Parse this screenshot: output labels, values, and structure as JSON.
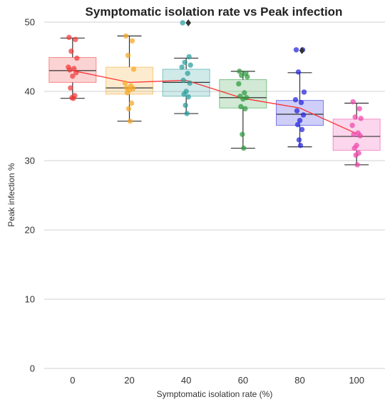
{
  "chart_data": {
    "type": "box",
    "title": "Symptomatic isolation rate vs Peak infection",
    "xlabel": "Symptomatic isolation rate (%)",
    "ylabel": "Peak infection %",
    "ylim": [
      0,
      50
    ],
    "yticks": [
      0,
      10,
      20,
      30,
      40,
      50
    ],
    "grid": true,
    "categories": [
      "0",
      "20",
      "40",
      "60",
      "80",
      "100"
    ],
    "colors": [
      "#f03838",
      "#f5a623",
      "#2a9d9d",
      "#2e9a3e",
      "#2222dd",
      "#ee44aa"
    ],
    "boxes": [
      {
        "category": "0",
        "min": 39.0,
        "q1": 41.3,
        "median": 43.0,
        "q3": 44.9,
        "max": 47.7
      },
      {
        "category": "20",
        "min": 35.7,
        "q1": 39.6,
        "median": 40.5,
        "q3": 43.5,
        "max": 48.0
      },
      {
        "category": "40",
        "min": 36.8,
        "q1": 39.3,
        "median": 41.3,
        "q3": 43.2,
        "max": 44.8
      },
      {
        "category": "60",
        "min": 31.8,
        "q1": 37.6,
        "median": 39.1,
        "q3": 41.7,
        "max": 42.9
      },
      {
        "category": "80",
        "min": 32.0,
        "q1": 35.1,
        "median": 36.7,
        "q3": 38.7,
        "max": 42.7
      },
      {
        "category": "100",
        "min": 29.4,
        "q1": 31.5,
        "median": 33.5,
        "q3": 36.0,
        "max": 38.3
      }
    ],
    "outliers": [
      {
        "category": "40",
        "value": 49.9
      },
      {
        "category": "80",
        "value": 45.9
      }
    ],
    "mean_line": [
      43.0,
      41.3,
      41.6,
      39.0,
      37.6,
      33.9
    ],
    "points": [
      [
        47.8,
        47.5,
        45.8,
        44.8,
        43.5,
        43.3,
        43.1,
        42.7,
        42.2,
        40.5,
        39.4,
        39.1,
        39.0
      ],
      [
        48.0,
        47.3,
        45.2,
        43.2,
        41.2,
        40.8,
        40.5,
        40.4,
        40.2,
        39.8,
        38.3,
        37.5,
        35.7
      ],
      [
        49.9,
        45.0,
        44.2,
        43.8,
        43.5,
        42.6,
        41.6,
        41.2,
        40.0,
        39.6,
        39.2,
        38.0,
        36.8
      ],
      [
        42.9,
        42.6,
        42.3,
        42.1,
        41.1,
        39.8,
        39.3,
        39.1,
        38.9,
        37.8,
        37.5,
        33.8,
        31.8
      ],
      [
        46.0,
        46.0,
        42.8,
        39.9,
        38.8,
        38.4,
        37.2,
        36.6,
        35.8,
        35.2,
        34.5,
        33.0,
        32.2
      ],
      [
        38.5,
        37.5,
        36.3,
        36.1,
        35.1,
        34.0,
        33.8,
        33.6,
        32.2,
        31.8,
        31.1,
        30.8,
        29.4
      ]
    ],
    "legend": "none"
  }
}
